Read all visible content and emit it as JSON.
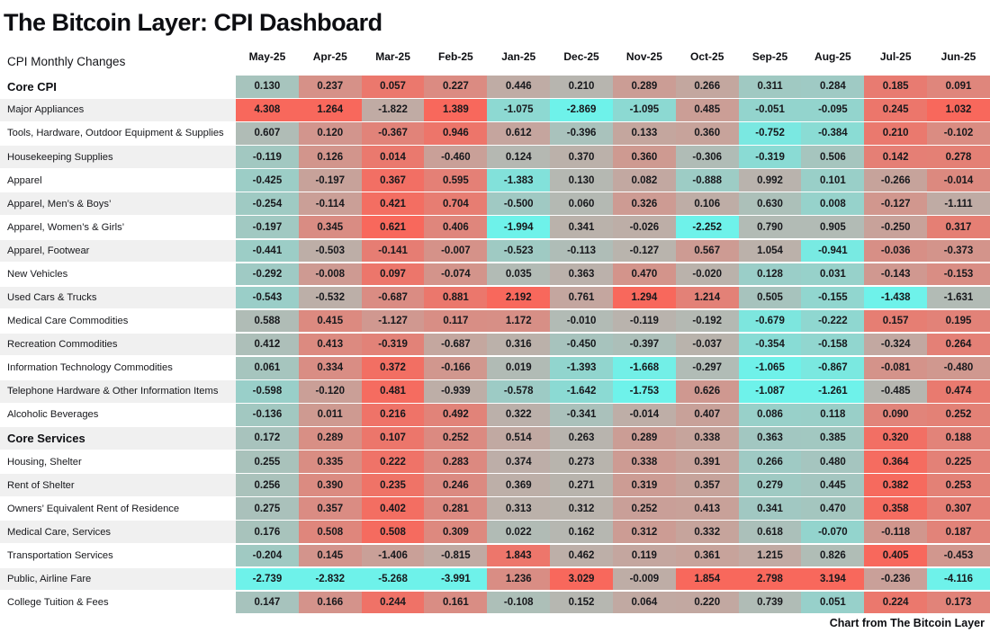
{
  "page": {
    "title": "The Bitcoin Layer: CPI Dashboard",
    "corner_label": "CPI Monthly Changes",
    "footer": "Chart from The Bitcoin Layer"
  },
  "chart_data": {
    "type": "heatmap",
    "title": "The Bitcoin Layer: CPI Dashboard",
    "subtitle": "CPI Monthly Changes",
    "source_note": "Chart from The Bitcoin Layer",
    "legend_position": "none",
    "grid": "off",
    "color_scale": {
      "description": "diverging scale applied per column, midpoint = (column min + column max)/2",
      "positive": "#f8685c",
      "neutral": "#b4b9b3",
      "negative": "#6ef2ea",
      "row_stripe": "#f0f0f0"
    },
    "columns": [
      "May-25",
      "Apr-25",
      "Mar-25",
      "Feb-25",
      "Jan-25",
      "Dec-25",
      "Nov-25",
      "Oct-25",
      "Sep-25",
      "Aug-25",
      "Jul-25",
      "Jun-25"
    ],
    "rows": [
      {
        "label": "Core CPI",
        "bold": true,
        "values": [
          0.13,
          0.237,
          0.057,
          0.227,
          0.446,
          0.21,
          0.289,
          0.266,
          0.311,
          0.284,
          0.185,
          0.091
        ]
      },
      {
        "label": "Major Appliances",
        "bold": false,
        "values": [
          4.308,
          1.264,
          -1.822,
          1.389,
          -1.075,
          -2.869,
          -1.095,
          0.485,
          -0.051,
          -0.095,
          0.245,
          1.032
        ]
      },
      {
        "label": "Tools, Hardware, Outdoor Equipment & Supplies",
        "bold": false,
        "values": [
          0.607,
          0.12,
          -0.367,
          0.946,
          0.612,
          -0.396,
          0.133,
          0.36,
          -0.752,
          -0.384,
          0.21,
          -0.102
        ]
      },
      {
        "label": "Housekeeping Supplies",
        "bold": false,
        "values": [
          -0.119,
          0.126,
          0.014,
          -0.46,
          0.124,
          0.37,
          0.36,
          -0.306,
          -0.319,
          0.506,
          0.142,
          0.278
        ]
      },
      {
        "label": "Apparel",
        "bold": false,
        "values": [
          -0.425,
          -0.197,
          0.367,
          0.595,
          -1.383,
          0.13,
          0.082,
          -0.888,
          0.992,
          0.101,
          -0.266,
          -0.014
        ]
      },
      {
        "label": "Apparel, Men’s & Boys’",
        "bold": false,
        "values": [
          -0.254,
          -0.114,
          0.421,
          0.704,
          -0.5,
          0.06,
          0.326,
          0.106,
          0.63,
          0.008,
          -0.127,
          -1.111
        ]
      },
      {
        "label": "Apparel, Women’s & Girls’",
        "bold": false,
        "values": [
          -0.197,
          0.345,
          0.621,
          0.406,
          -1.994,
          0.341,
          -0.026,
          -2.252,
          0.79,
          0.905,
          -0.25,
          0.317
        ]
      },
      {
        "label": "Apparel, Footwear",
        "bold": false,
        "values": [
          -0.441,
          -0.503,
          -0.141,
          -0.007,
          -0.523,
          -0.113,
          -0.127,
          0.567,
          1.054,
          -0.941,
          -0.036,
          -0.373
        ]
      },
      {
        "label": "New Vehicles",
        "bold": false,
        "values": [
          -0.292,
          -0.008,
          0.097,
          -0.074,
          0.035,
          0.363,
          0.47,
          -0.02,
          0.128,
          0.031,
          -0.143,
          -0.153
        ]
      },
      {
        "label": "Used Cars & Trucks",
        "bold": false,
        "values": [
          -0.543,
          -0.532,
          -0.687,
          0.881,
          2.192,
          0.761,
          1.294,
          1.214,
          0.505,
          -0.155,
          -1.438,
          -1.631
        ]
      },
      {
        "label": "Medical Care Commodities",
        "bold": false,
        "values": [
          0.588,
          0.415,
          -1.127,
          0.117,
          1.172,
          -0.01,
          -0.119,
          -0.192,
          -0.679,
          -0.222,
          0.157,
          0.195
        ]
      },
      {
        "label": "Recreation Commodities",
        "bold": false,
        "values": [
          0.412,
          0.413,
          -0.319,
          -0.687,
          0.316,
          -0.45,
          -0.397,
          -0.037,
          -0.354,
          -0.158,
          -0.324,
          0.264
        ]
      },
      {
        "label": "Information Technology Commodities",
        "bold": false,
        "values": [
          0.061,
          0.334,
          0.372,
          -0.166,
          0.019,
          -1.393,
          -1.668,
          -0.297,
          -1.065,
          -0.867,
          -0.081,
          -0.48
        ]
      },
      {
        "label": "Telephone Hardware & Other Information Items",
        "bold": false,
        "values": [
          -0.598,
          -0.12,
          0.481,
          -0.939,
          -0.578,
          -1.642,
          -1.753,
          0.626,
          -1.087,
          -1.261,
          -0.485,
          0.474
        ]
      },
      {
        "label": "Alcoholic Beverages",
        "bold": false,
        "values": [
          -0.136,
          0.011,
          0.216,
          0.492,
          0.322,
          -0.341,
          -0.014,
          0.407,
          0.086,
          0.118,
          0.09,
          0.252
        ]
      },
      {
        "label": "Core Services",
        "bold": true,
        "values": [
          0.172,
          0.289,
          0.107,
          0.252,
          0.514,
          0.263,
          0.289,
          0.338,
          0.363,
          0.385,
          0.32,
          0.188
        ]
      },
      {
        "label": "Housing, Shelter",
        "bold": false,
        "values": [
          0.255,
          0.335,
          0.222,
          0.283,
          0.374,
          0.273,
          0.338,
          0.391,
          0.266,
          0.48,
          0.364,
          0.225
        ]
      },
      {
        "label": "Rent of Shelter",
        "bold": false,
        "values": [
          0.256,
          0.39,
          0.235,
          0.246,
          0.369,
          0.271,
          0.319,
          0.357,
          0.279,
          0.445,
          0.382,
          0.253
        ]
      },
      {
        "label": "Owners’ Equivalent Rent of Residence",
        "bold": false,
        "values": [
          0.275,
          0.357,
          0.402,
          0.281,
          0.313,
          0.312,
          0.252,
          0.413,
          0.341,
          0.47,
          0.358,
          0.307
        ]
      },
      {
        "label": "Medical Care, Services",
        "bold": false,
        "values": [
          0.176,
          0.508,
          0.508,
          0.309,
          0.022,
          0.162,
          0.312,
          0.332,
          0.618,
          -0.07,
          -0.118,
          0.187
        ]
      },
      {
        "label": "Transportation Services",
        "bold": false,
        "values": [
          -0.204,
          0.145,
          -1.406,
          -0.815,
          1.843,
          0.462,
          0.119,
          0.361,
          1.215,
          0.826,
          0.405,
          -0.453
        ]
      },
      {
        "label": "Public, Airline Fare",
        "bold": false,
        "values": [
          -2.739,
          -2.832,
          -5.268,
          -3.991,
          1.236,
          3.029,
          -0.009,
          1.854,
          2.798,
          3.194,
          -0.236,
          -4.116
        ]
      },
      {
        "label": "College Tuition & Fees",
        "bold": false,
        "values": [
          0.147,
          0.166,
          0.244,
          0.161,
          -0.108,
          0.152,
          0.064,
          0.22,
          0.739,
          0.051,
          0.224,
          0.173
        ]
      }
    ]
  }
}
